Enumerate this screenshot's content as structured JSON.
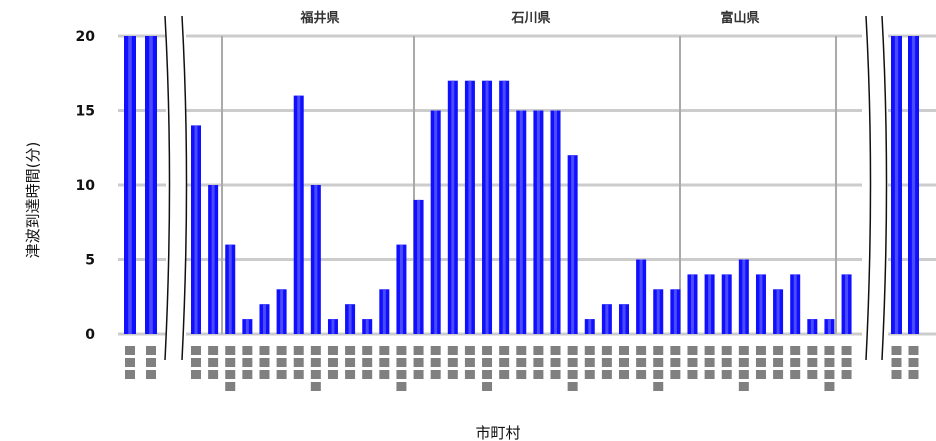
{
  "chart_data": {
    "type": "bar",
    "ylabel": "津波到達時間(分)",
    "xlabel": "市町村",
    "ylim": [
      0,
      20
    ],
    "yticks": [
      0,
      5,
      10,
      15,
      20
    ],
    "grid": true,
    "bar_color": "#1010ff",
    "regions": [
      "福井県",
      "石川県",
      "富山県"
    ],
    "groups": [
      {
        "values": [
          20,
          20
        ]
      },
      {
        "values": [
          14,
          10,
          6,
          1,
          2,
          3,
          16,
          10,
          1,
          2,
          1,
          3,
          6,
          9,
          15,
          17,
          17,
          17,
          17,
          15,
          15,
          15,
          12,
          1,
          2,
          2,
          5,
          3,
          3,
          4,
          4,
          4,
          5,
          4,
          3,
          4,
          1,
          1,
          4
        ]
      },
      {
        "values": [
          20,
          20
        ]
      }
    ]
  }
}
